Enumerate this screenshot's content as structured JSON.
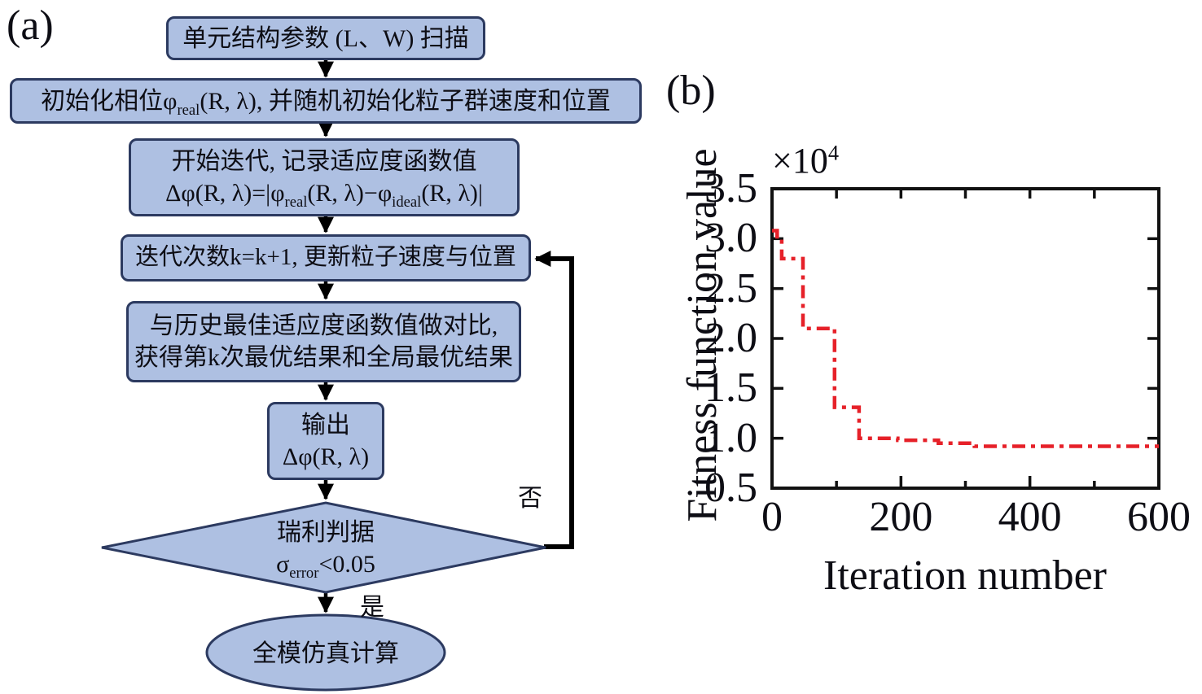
{
  "panel_a": {
    "label": "(a)",
    "box1": "单元结构参数 (L、W) 扫描",
    "box2": {
      "part1": "初始化相位φ",
      "sub": "real",
      "part2": "(R, λ), 并随机初始化粒子群速度和位置"
    },
    "box3": {
      "line1": "开始迭代, 记录适应度函数值",
      "f1": "Δφ(R, λ)=|φ",
      "sub1": "real",
      "f2": "(R, λ)−φ",
      "sub2": "ideal",
      "f3": "(R, λ)|"
    },
    "box4": "迭代次数k=k+1, 更新粒子速度与位置",
    "box5": {
      "line1": "与历史最佳适应度函数值做对比,",
      "line2": "获得第k次最优结果和全局最优结果"
    },
    "box6": {
      "line1": "输出",
      "line2": "Δφ(R, λ)"
    },
    "diamond": {
      "line1": "瑞利判据",
      "f1": "σ",
      "sub": "error",
      "f2": "<0.05"
    },
    "ellipse": "全模仿真计算",
    "label_no": "否",
    "label_yes": "是",
    "colors": {
      "box_fill": "#aec0e2",
      "box_border": "#2c3a60",
      "arrow": "#000000"
    }
  },
  "panel_b": {
    "label": "(b)"
  },
  "chart_data": {
    "type": "line",
    "title": "",
    "xlabel": "Iteration number",
    "ylabel": "Fitness function value",
    "scale_label_base": "×10",
    "scale_label_exponent": "4",
    "xlim": [
      0,
      600
    ],
    "ylim": [
      0.5,
      3.5
    ],
    "x_tick_labels": [
      "0",
      "200",
      "400",
      "600"
    ],
    "x_tick_values": [
      0,
      200,
      400,
      600
    ],
    "x_minor_tick_values": [
      100,
      300,
      500
    ],
    "y_tick_labels": [
      "3.5",
      "3.0",
      "2.5",
      "2.0",
      "1.5",
      "1.0",
      "0.5"
    ],
    "y_tick_values": [
      3.5,
      3.0,
      2.5,
      2.0,
      1.5,
      1.0,
      0.5
    ],
    "grid": false,
    "legend": null,
    "line_color": "#e62129",
    "line_style": "dash-dot",
    "series": [
      {
        "name": "Fitness function value",
        "step_points": [
          [
            0,
            3.08
          ],
          [
            8,
            3.0
          ],
          [
            15,
            2.8
          ],
          [
            48,
            2.1
          ],
          [
            97,
            1.31
          ],
          [
            135,
            1.0
          ],
          [
            195,
            0.98
          ],
          [
            258,
            0.95
          ],
          [
            314,
            0.92
          ],
          [
            600,
            0.92
          ]
        ]
      }
    ]
  }
}
